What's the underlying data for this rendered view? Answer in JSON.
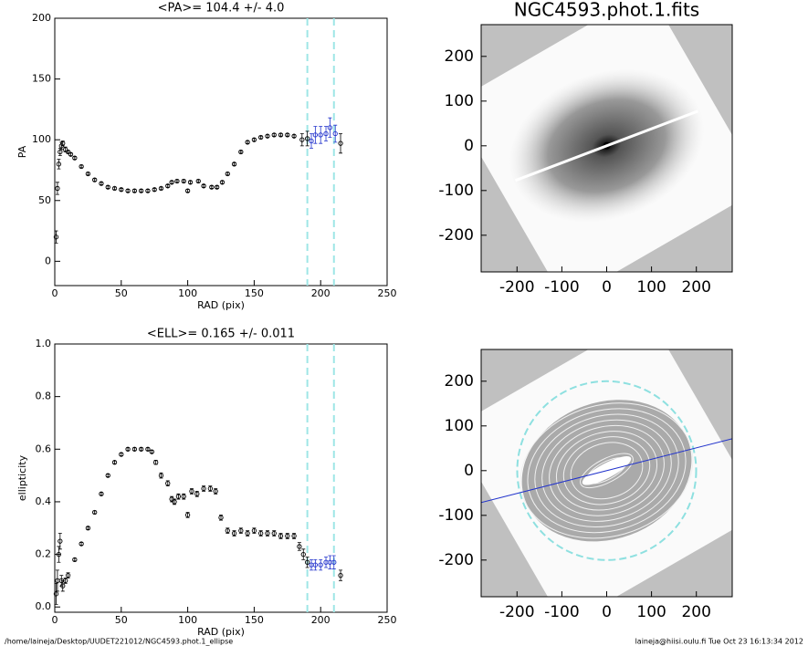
{
  "chart_data": [
    {
      "type": "scatter",
      "title": "<PA>= 104.4 +/-   4.0",
      "xlabel": "RAD (pix)",
      "ylabel": "PA",
      "xlim": [
        0,
        250
      ],
      "ylim": [
        -20,
        200
      ],
      "xticks": [
        0,
        50,
        100,
        150,
        200,
        250
      ],
      "yticks": [
        0,
        50,
        100,
        150,
        200
      ],
      "vlines": [
        190,
        210
      ],
      "vline_color": "#9ee6e6",
      "series": [
        {
          "color": "#000000",
          "x": [
            1,
            2,
            3,
            4,
            5,
            6,
            8,
            10,
            12,
            15,
            20,
            25,
            30,
            35,
            40,
            45,
            50,
            55,
            60,
            65,
            70,
            75,
            80,
            85,
            88,
            92,
            97,
            100,
            102,
            108,
            112,
            118,
            122,
            126,
            130,
            135,
            140,
            145,
            150,
            155,
            160,
            165,
            170,
            175,
            180,
            186,
            190,
            215
          ],
          "values": [
            20,
            60,
            80,
            90,
            95,
            97,
            92,
            90,
            88,
            85,
            78,
            72,
            67,
            64,
            61,
            60,
            59,
            58,
            58,
            58,
            58,
            59,
            60,
            62,
            65,
            66,
            66,
            58,
            65,
            66,
            62,
            61,
            61,
            65,
            72,
            80,
            90,
            98,
            100,
            102,
            103,
            104,
            104,
            104,
            103,
            100,
            101,
            97
          ],
          "errors": [
            5,
            5,
            4,
            3,
            3,
            2,
            2,
            1,
            1,
            1,
            1,
            1,
            1,
            1,
            1,
            1,
            1,
            1,
            1,
            1,
            1,
            1,
            1,
            1,
            1,
            1,
            1,
            1,
            1,
            1,
            1,
            1,
            1,
            1,
            1,
            1,
            1,
            1,
            1,
            1,
            1,
            1,
            1,
            1,
            1,
            5,
            6,
            8
          ]
        },
        {
          "color": "#2233cc",
          "x": [
            193,
            196,
            200,
            204,
            207,
            211
          ],
          "values": [
            99,
            104,
            104,
            105,
            110,
            105
          ],
          "errors": [
            6,
            7,
            7,
            6,
            8,
            7
          ]
        }
      ]
    },
    {
      "type": "scatter",
      "title": "<ELL>= 0.165 +/-  0.011",
      "xlabel": "RAD (pix)",
      "ylabel": "ellipticity",
      "xlim": [
        0,
        250
      ],
      "ylim": [
        -0.02,
        1.0
      ],
      "xticks": [
        0,
        50,
        100,
        150,
        200,
        250
      ],
      "yticks": [
        {
          "value": 0,
          "label": "0.0"
        },
        0.2,
        0.4,
        0.6,
        0.8,
        {
          "value": 1,
          "label": "1.0"
        }
      ],
      "vlines": [
        190,
        210
      ],
      "vline_color": "#9ee6e6",
      "series": [
        {
          "color": "#000000",
          "x": [
            1,
            2,
            3,
            4,
            5,
            6,
            8,
            10,
            15,
            20,
            25,
            30,
            35,
            40,
            45,
            50,
            55,
            60,
            65,
            70,
            73,
            76,
            80,
            85,
            88,
            90,
            93,
            97,
            100,
            103,
            107,
            112,
            117,
            121,
            125,
            130,
            135,
            140,
            145,
            150,
            155,
            160,
            165,
            170,
            175,
            180,
            184,
            187,
            190,
            215
          ],
          "values": [
            0.05,
            0.1,
            0.2,
            0.25,
            0.1,
            0.08,
            0.1,
            0.12,
            0.18,
            0.24,
            0.3,
            0.36,
            0.43,
            0.5,
            0.55,
            0.58,
            0.6,
            0.6,
            0.6,
            0.6,
            0.59,
            0.55,
            0.5,
            0.47,
            0.41,
            0.4,
            0.42,
            0.42,
            0.35,
            0.44,
            0.43,
            0.45,
            0.45,
            0.44,
            0.34,
            0.29,
            0.28,
            0.29,
            0.28,
            0.29,
            0.28,
            0.28,
            0.28,
            0.27,
            0.27,
            0.27,
            0.23,
            0.2,
            0.17,
            0.12
          ],
          "errors": [
            0.04,
            0.04,
            0.03,
            0.03,
            0.02,
            0.02,
            0.01,
            0.01,
            0.005,
            0.005,
            0.005,
            0.005,
            0.005,
            0.005,
            0.005,
            0.005,
            0.005,
            0.005,
            0.005,
            0.005,
            0.005,
            0.008,
            0.01,
            0.01,
            0.01,
            0.01,
            0.01,
            0.01,
            0.01,
            0.01,
            0.01,
            0.01,
            0.01,
            0.01,
            0.01,
            0.01,
            0.01,
            0.01,
            0.01,
            0.01,
            0.01,
            0.01,
            0.01,
            0.01,
            0.01,
            0.01,
            0.015,
            0.02,
            0.02,
            0.02
          ]
        },
        {
          "color": "#2233cc",
          "x": [
            193,
            196,
            200,
            204,
            207,
            210
          ],
          "values": [
            0.16,
            0.16,
            0.16,
            0.17,
            0.17,
            0.17
          ],
          "errors": [
            0.02,
            0.02,
            0.02,
            0.02,
            0.025,
            0.025
          ]
        }
      ]
    },
    {
      "type": "image",
      "title": "NGC4593.phot.1.fits",
      "xlim": [
        -280,
        280
      ],
      "ylim": [
        -282,
        271
      ],
      "xticks": [
        -200,
        -100,
        0,
        100,
        200
      ],
      "yticks": [
        -200,
        -100,
        0,
        100,
        200
      ]
    },
    {
      "type": "image",
      "overlay": true,
      "xlim": [
        -280,
        280
      ],
      "ylim": [
        -282,
        271
      ],
      "xticks": [
        -200,
        -100,
        0,
        100,
        200
      ],
      "yticks": [
        -200,
        -100,
        0,
        100,
        200
      ]
    }
  ],
  "footer": {
    "left": "/home/laineja/Desktop/UUDET221012/NGC4593.phot.1_ellipse",
    "right": "laineja@hiisi.oulu.fi  Tue Oct 23 16:13:34 2012"
  }
}
